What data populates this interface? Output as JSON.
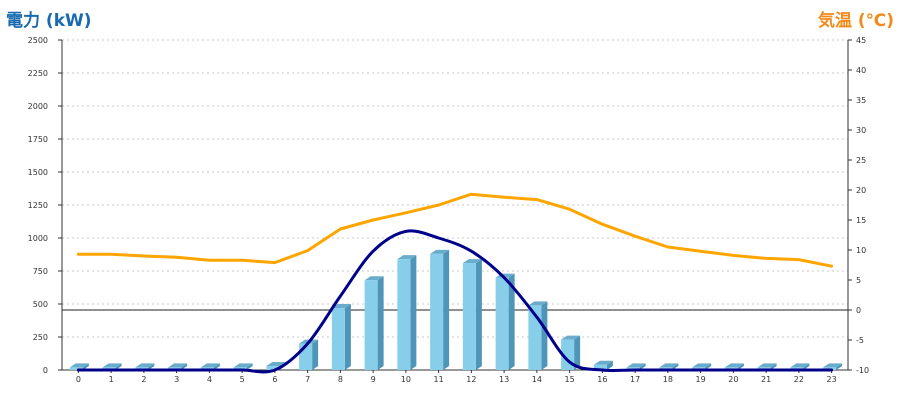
{
  "chart_data": {
    "type": "bar",
    "ylabel": "電力 (kW)",
    "y2label": "気温 (℃)",
    "categories": [
      "0",
      "1",
      "2",
      "3",
      "4",
      "5",
      "6",
      "7",
      "8",
      "9",
      "10",
      "11",
      "12",
      "13",
      "14",
      "15",
      "16",
      "17",
      "18",
      "19",
      "20",
      "21",
      "22",
      "23"
    ],
    "ylim": [
      0,
      2500
    ],
    "yticks": [
      0,
      250,
      500,
      750,
      1000,
      1250,
      1500,
      1750,
      2000,
      2250,
      2500
    ],
    "y2lim": [
      -10,
      45
    ],
    "y2ticks": [
      -10,
      -5,
      0,
      5,
      10,
      15,
      20,
      25,
      30,
      35,
      40,
      45
    ],
    "grid": true,
    "series": [
      {
        "kind": "bar",
        "axis": "left",
        "color": "#87ceeb",
        "values": [
          20,
          20,
          20,
          20,
          20,
          20,
          30,
          200,
          470,
          680,
          840,
          880,
          810,
          700,
          490,
          230,
          40,
          20,
          20,
          20,
          20,
          20,
          20,
          20
        ]
      },
      {
        "kind": "line",
        "axis": "left",
        "color": "#00008b",
        "values": [
          0,
          0,
          0,
          0,
          0,
          0,
          0,
          200,
          560,
          900,
          1050,
          1000,
          900,
          700,
          400,
          60,
          0,
          0,
          0,
          0,
          0,
          0,
          0,
          0
        ]
      },
      {
        "kind": "line",
        "axis": "right",
        "color": "#ffa500",
        "values": [
          9.3,
          9.3,
          9.0,
          8.8,
          8.3,
          8.3,
          7.9,
          9.9,
          13.5,
          15.0,
          16.2,
          17.5,
          19.3,
          18.8,
          18.4,
          16.8,
          14.3,
          12.3,
          10.5,
          9.8,
          9.1,
          8.6,
          8.4,
          7.3
        ]
      }
    ]
  }
}
